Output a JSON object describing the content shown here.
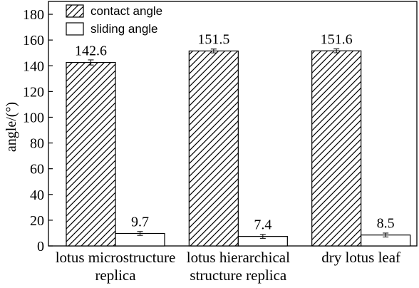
{
  "chart_data": {
    "type": "bar",
    "title": "",
    "xlabel": "",
    "ylabel": "angle/(°)",
    "ylim": [
      0,
      190
    ],
    "yticks": [
      0,
      20,
      40,
      60,
      80,
      100,
      120,
      140,
      160,
      180
    ],
    "categories": [
      [
        "lotus microstructure",
        "replica"
      ],
      [
        "lotus hierarchical",
        "structure replica"
      ],
      [
        "dry lotus leaf"
      ]
    ],
    "series": [
      {
        "name": "contact angle",
        "pattern": "diagonal-hatch",
        "values": [
          142.6,
          151.5,
          151.6
        ],
        "value_labels": [
          "142.6",
          "151.5",
          "151.6"
        ],
        "errors": [
          2,
          1.5,
          1.5
        ]
      },
      {
        "name": "sliding angle",
        "pattern": "none",
        "values": [
          9.7,
          7.4,
          8.5
        ],
        "value_labels": [
          "9.7",
          "7.4",
          "8.5"
        ],
        "errors": [
          1.5,
          1.5,
          1.5
        ]
      }
    ],
    "legend_position": "top-left",
    "grid": false
  }
}
